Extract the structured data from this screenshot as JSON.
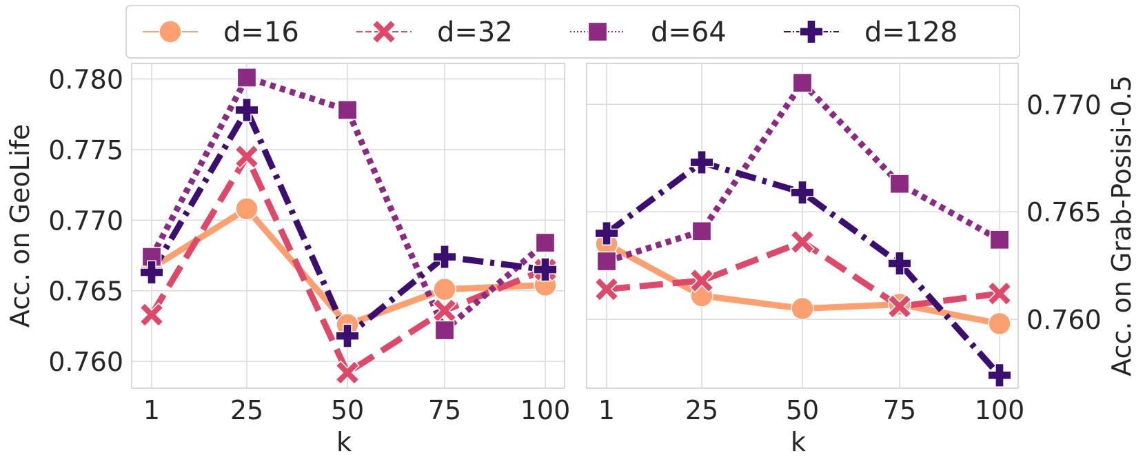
{
  "legend": {
    "entries": [
      {
        "label": "d=16",
        "color": "#fca06f",
        "marker": "circle",
        "dash": "solid"
      },
      {
        "label": "d=32",
        "color": "#de4969",
        "marker": "x",
        "dash": "dashed"
      },
      {
        "label": "d=64",
        "color": "#8c2981",
        "marker": "square",
        "dash": "dotted"
      },
      {
        "label": "d=128",
        "color": "#3b0f70",
        "marker": "plus",
        "dash": "dashdot"
      }
    ]
  },
  "chart_data": [
    {
      "type": "line",
      "xlabel": "k",
      "ylabel": "Acc. on GeoLife",
      "ylabel_side": "left",
      "categories": [
        "1",
        "25",
        "50",
        "75",
        "100"
      ],
      "ylim": [
        0.7581,
        0.7811
      ],
      "yticks": [
        0.76,
        0.765,
        0.77,
        0.775,
        0.78
      ],
      "ytick_labels": [
        "0.760",
        "0.765",
        "0.770",
        "0.775",
        "0.780"
      ],
      "grid": true,
      "series": [
        {
          "name": "d=16",
          "values": [
            0.7666,
            0.7708,
            0.7626,
            0.7651,
            0.7654
          ]
        },
        {
          "name": "d=32",
          "values": [
            0.7633,
            0.7745,
            0.7592,
            0.7636,
            0.7665
          ]
        },
        {
          "name": "d=64",
          "values": [
            0.7674,
            0.7801,
            0.7778,
            0.7622,
            0.7684
          ]
        },
        {
          "name": "d=128",
          "values": [
            0.7663,
            0.7778,
            0.7618,
            0.7674,
            0.7665
          ]
        }
      ]
    },
    {
      "type": "line",
      "xlabel": "k",
      "ylabel": "Acc. on Grab-Posisi-0.5",
      "ylabel_side": "right",
      "categories": [
        "1",
        "25",
        "50",
        "75",
        "100"
      ],
      "ylim": [
        0.7568,
        0.7719
      ],
      "yticks": [
        0.76,
        0.765,
        0.77
      ],
      "ytick_labels": [
        "0.760",
        "0.765",
        "0.770"
      ],
      "grid": true,
      "series": [
        {
          "name": "d=16",
          "values": [
            0.7635,
            0.7611,
            0.7605,
            0.7607,
            0.7598
          ]
        },
        {
          "name": "d=32",
          "values": [
            0.7614,
            0.7618,
            0.7636,
            0.7606,
            0.7612
          ]
        },
        {
          "name": "d=64",
          "values": [
            0.7627,
            0.7641,
            0.771,
            0.7663,
            0.7637
          ]
        },
        {
          "name": "d=128",
          "values": [
            0.764,
            0.7673,
            0.7659,
            0.7626,
            0.7574
          ]
        }
      ]
    }
  ]
}
